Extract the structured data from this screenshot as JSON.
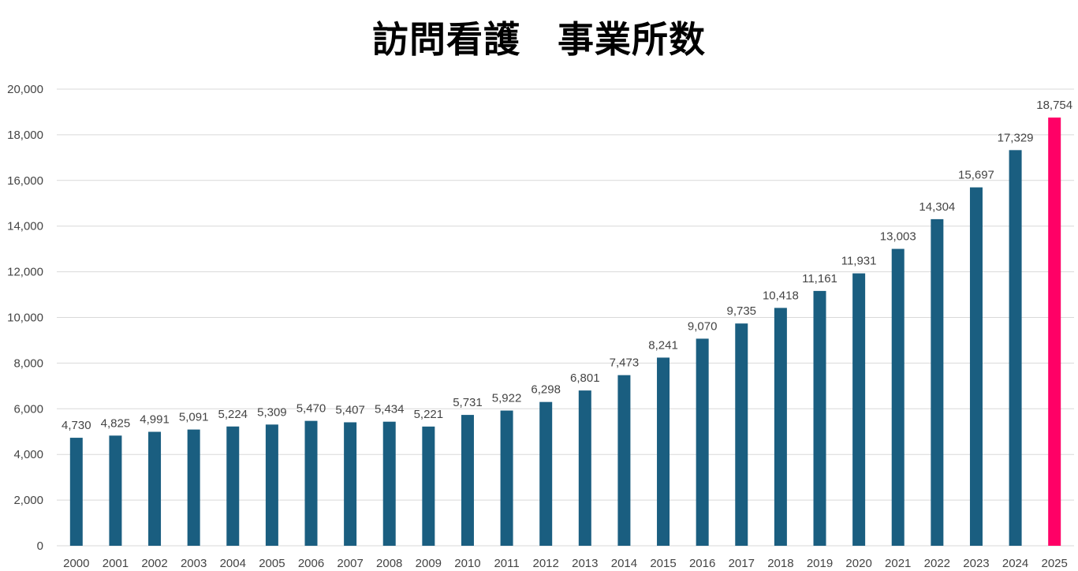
{
  "chart_data": {
    "type": "bar",
    "title": "訪問看護　事業所数",
    "categories": [
      "2000",
      "2001",
      "2002",
      "2003",
      "2004",
      "2005",
      "2006",
      "2007",
      "2008",
      "2009",
      "2010",
      "2011",
      "2012",
      "2013",
      "2014",
      "2015",
      "2016",
      "2017",
      "2018",
      "2019",
      "2020",
      "2021",
      "2022",
      "2023",
      "2024",
      "2025"
    ],
    "values": [
      4730,
      4825,
      4991,
      5091,
      5224,
      5309,
      5470,
      5407,
      5434,
      5221,
      5731,
      5922,
      6298,
      6801,
      7473,
      8241,
      9070,
      9735,
      10418,
      11161,
      11931,
      13003,
      14304,
      15697,
      17329,
      18754
    ],
    "data_labels": [
      "4,730",
      "4,825",
      "4,991",
      "5,091",
      "5,224",
      "5,309",
      "5,470",
      "5,407",
      "5,434",
      "5,221",
      "5,731",
      "5,922",
      "6,298",
      "6,801",
      "7,473",
      "8,241",
      "9,070",
      "9,735",
      "10,418",
      "11,161",
      "11,931",
      "13,003",
      "14,304",
      "15,697",
      "17,329",
      "18,754"
    ],
    "ylim": [
      0,
      20000
    ],
    "yticks": [
      "0",
      "2,000",
      "4,000",
      "6,000",
      "8,000",
      "10,000",
      "12,000",
      "14,000",
      "16,000",
      "18,000",
      "20,000"
    ],
    "grid": true,
    "colors": {
      "bar": "#1a5e80",
      "highlight": "#ff0066",
      "grid": "#d9d9d9"
    },
    "highlight_category": "2025"
  }
}
